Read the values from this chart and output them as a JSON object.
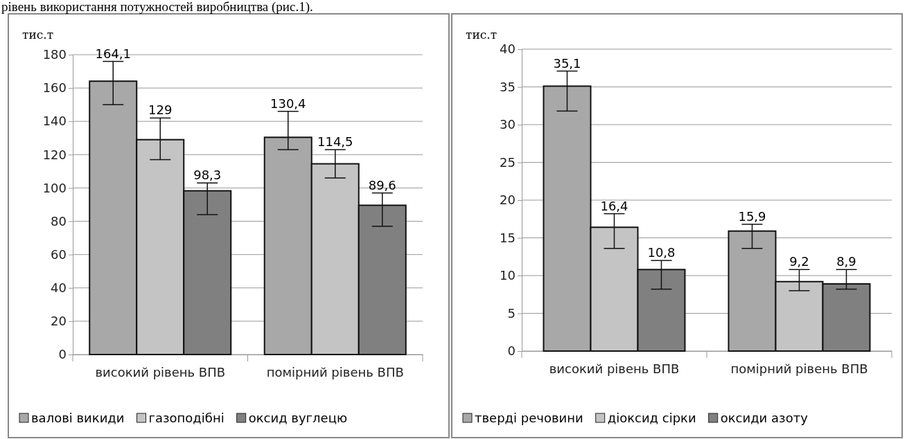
{
  "chart_data": [
    {
      "type": "bar",
      "ylabel": "тис.т",
      "categories": [
        "високий рівень ВПВ",
        "помірний рівень ВПВ"
      ],
      "ylim": [
        0,
        180
      ],
      "yticks": [
        0,
        20,
        40,
        60,
        80,
        100,
        120,
        140,
        160,
        180
      ],
      "grid": "y",
      "legend": "bottom",
      "annotations": [
        "рівень використання потужностей виробництва (рис.1)."
      ],
      "series": [
        {
          "name": "валові викиди",
          "color": "#a8a8a8",
          "values": [
            164.1,
            130.4
          ],
          "value_labels": [
            "164,1",
            "130,4"
          ],
          "errors": [
            [
              150,
              176
            ],
            [
              123,
              146
            ]
          ]
        },
        {
          "name": "газоподібні",
          "color": "#c4c4c4",
          "values": [
            129,
            114.5
          ],
          "value_labels": [
            "129",
            "114,5"
          ],
          "errors": [
            [
              117,
              142
            ],
            [
              106,
              123
            ]
          ]
        },
        {
          "name": "оксид вуглецю",
          "color": "#808080",
          "values": [
            98.3,
            89.6
          ],
          "value_labels": [
            "98,3",
            "89,6"
          ],
          "errors": [
            [
              84,
              103
            ],
            [
              77,
              97
            ]
          ]
        }
      ]
    },
    {
      "type": "bar",
      "ylabel": "тис.т",
      "categories": [
        "високий рівень ВПВ",
        "помірний рівень ВПВ"
      ],
      "ylim": [
        0,
        40
      ],
      "yticks": [
        0,
        5,
        10,
        15,
        20,
        25,
        30,
        35,
        40
      ],
      "grid": "y",
      "legend": "bottom",
      "series": [
        {
          "name": "тверді речовини",
          "color": "#a8a8a8",
          "values": [
            35.1,
            15.9
          ],
          "value_labels": [
            "35,1",
            "15,9"
          ],
          "errors": [
            [
              31.8,
              37.1
            ],
            [
              13.6,
              16.8
            ]
          ]
        },
        {
          "name": "діоксид сірки",
          "color": "#c4c4c4",
          "values": [
            16.4,
            9.2
          ],
          "value_labels": [
            "16,4",
            "9,2"
          ],
          "errors": [
            [
              13.6,
              18.2
            ],
            [
              8,
              10.8
            ]
          ]
        },
        {
          "name": "оксиди азоту",
          "color": "#808080",
          "values": [
            10.8,
            8.9
          ],
          "value_labels": [
            "10,8",
            "8,9"
          ],
          "errors": [
            [
              8.2,
              12
            ],
            [
              8.2,
              10.8
            ]
          ]
        }
      ]
    }
  ]
}
